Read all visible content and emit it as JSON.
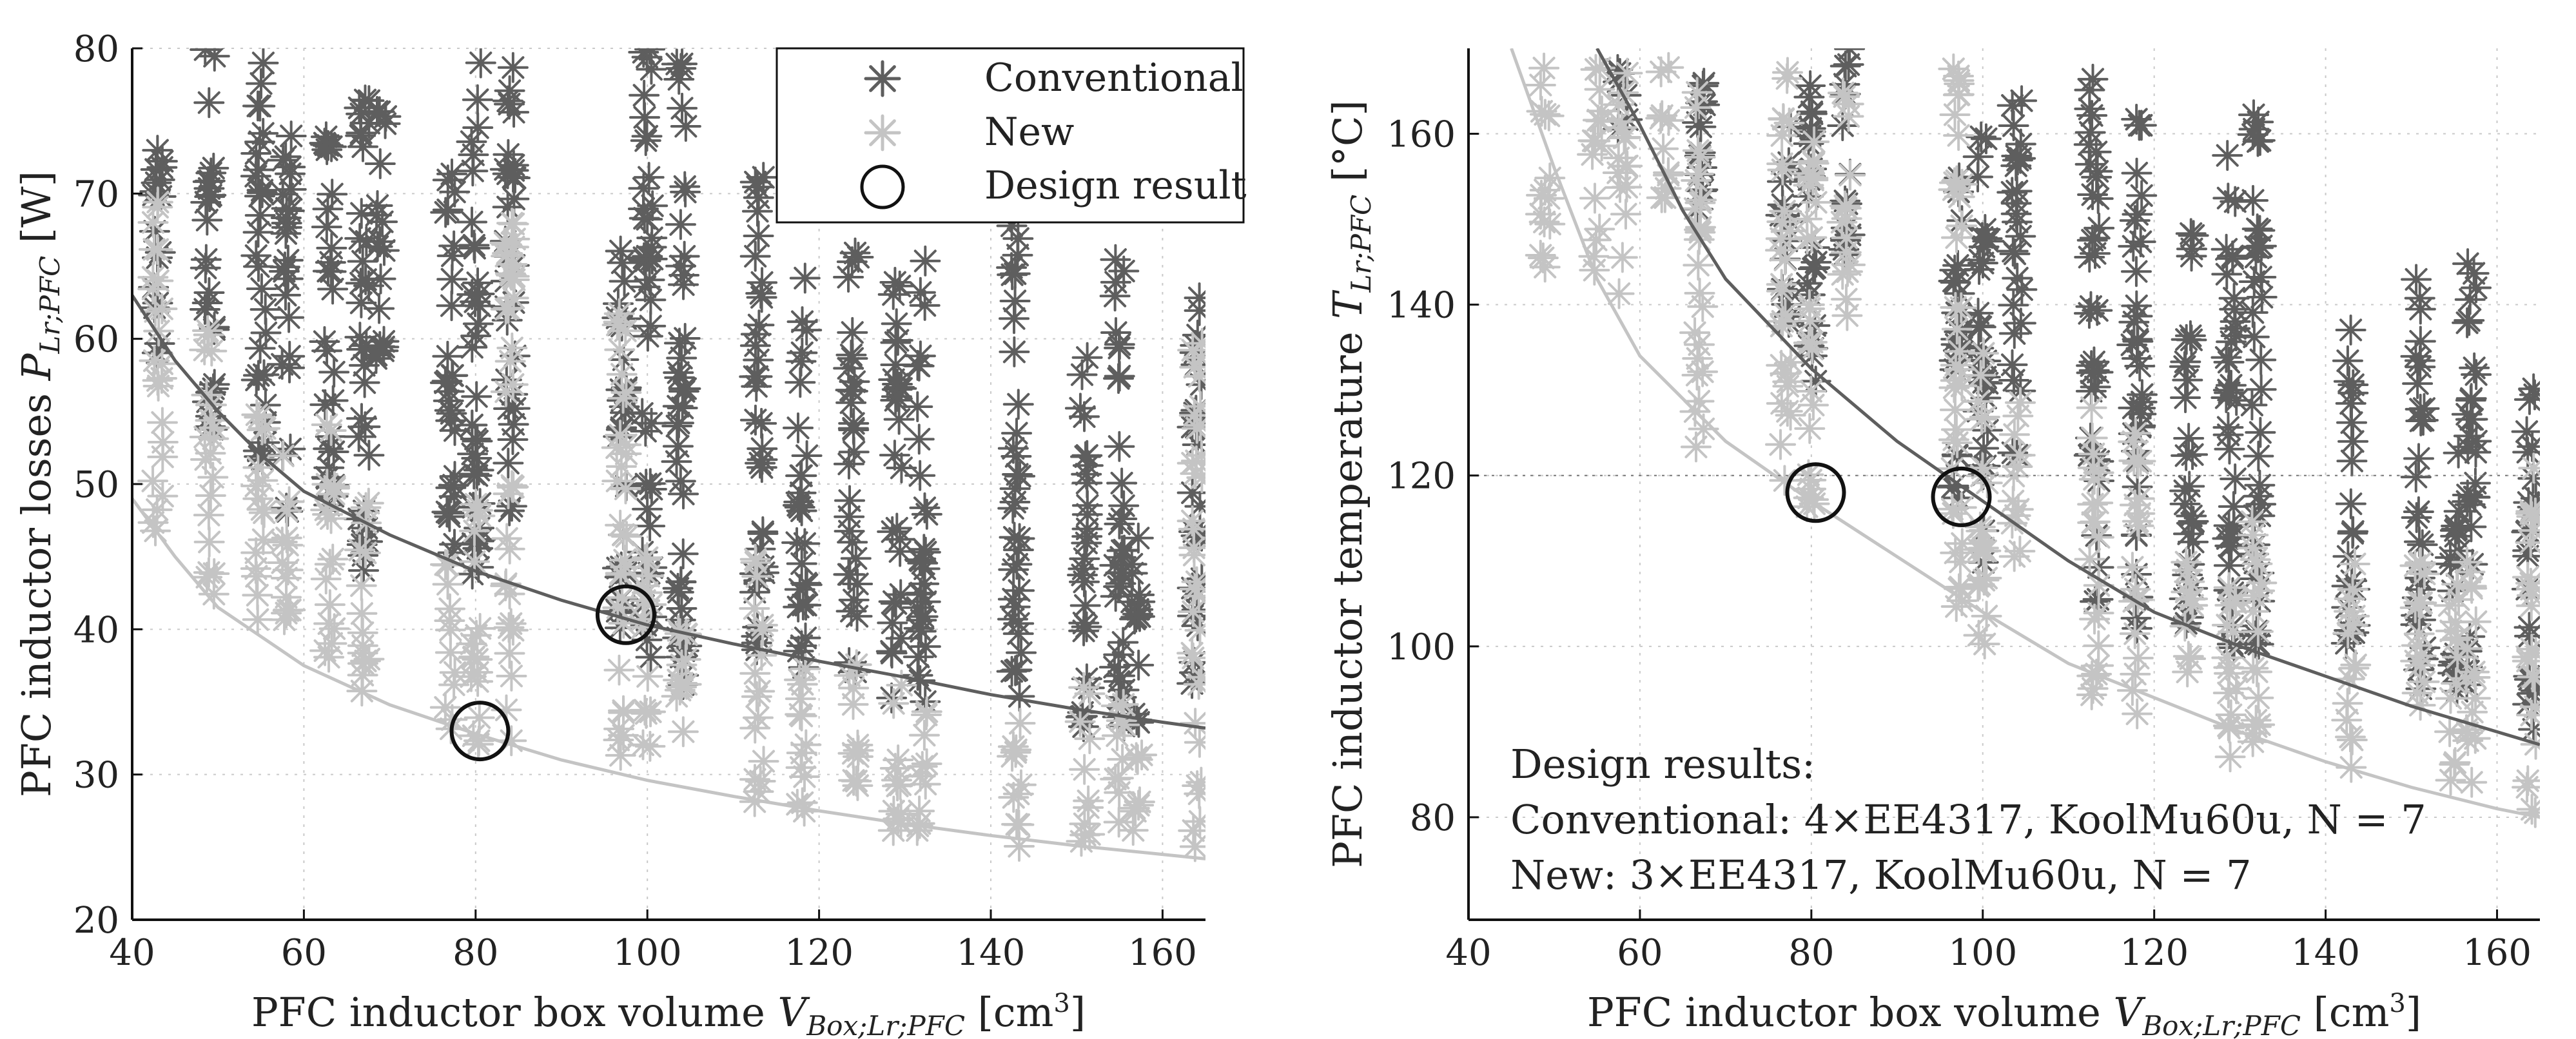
{
  "chart_data": [
    {
      "type": "scatter",
      "xlabel_text": "PFC inductor box volume ",
      "xlabel_symbol": "V",
      "xlabel_sub": "Box;Lr;PFC",
      "xlabel_unit": " [cm",
      "xlabel_unit_sup": "3",
      "xlabel_unit_end": "]",
      "ylabel_text": "PFC inductor losses ",
      "ylabel_symbol": "P",
      "ylabel_sub": "Lr;PFC",
      "ylabel_unit": " [W]",
      "xlim": [
        40,
        165
      ],
      "ylim": [
        20,
        80
      ],
      "xticks": [
        40,
        60,
        80,
        100,
        120,
        140,
        160
      ],
      "yticks": [
        20,
        30,
        40,
        50,
        60,
        70,
        80
      ],
      "grid": true,
      "legend_position": "top-right",
      "legend": [
        {
          "label": "Conventional",
          "marker": "asterisk",
          "color": "#5e5e5e"
        },
        {
          "label": "New",
          "marker": "asterisk",
          "color": "#c4c4c4"
        },
        {
          "label": "Design result",
          "marker": "circle",
          "color": "#111111"
        }
      ],
      "series": [
        {
          "name": "Conventional",
          "color": "#5e5e5e",
          "columns": [
            {
              "x": 43,
              "ymin": 58,
              "ymax": 75
            },
            {
              "x": 49,
              "ymin": 53,
              "ymax": 80
            },
            {
              "x": 55,
              "ymin": 50,
              "ymax": 79
            },
            {
              "x": 58,
              "ymin": 48,
              "ymax": 74
            },
            {
              "x": 63,
              "ymin": 47,
              "ymax": 75
            },
            {
              "x": 67,
              "ymin": 44,
              "ymax": 77
            },
            {
              "x": 69,
              "ymin": 58,
              "ymax": 77
            },
            {
              "x": 77,
              "ymin": 43,
              "ymax": 72
            },
            {
              "x": 80,
              "ymin": 43,
              "ymax": 79
            },
            {
              "x": 84,
              "ymin": 48,
              "ymax": 79
            },
            {
              "x": 97,
              "ymin": 40,
              "ymax": 68
            },
            {
              "x": 100,
              "ymin": 38,
              "ymax": 80
            },
            {
              "x": 104,
              "ymin": 36,
              "ymax": 79
            },
            {
              "x": 113,
              "ymin": 37,
              "ymax": 72
            },
            {
              "x": 118,
              "ymin": 37,
              "ymax": 65
            },
            {
              "x": 124,
              "ymin": 36,
              "ymax": 66
            },
            {
              "x": 129,
              "ymin": 35,
              "ymax": 64
            },
            {
              "x": 132,
              "ymin": 35,
              "ymax": 66
            },
            {
              "x": 143,
              "ymin": 34,
              "ymax": 68
            },
            {
              "x": 151,
              "ymin": 33,
              "ymax": 61
            },
            {
              "x": 155,
              "ymin": 33,
              "ymax": 66
            },
            {
              "x": 157,
              "ymin": 33,
              "ymax": 48
            },
            {
              "x": 164,
              "ymin": 36,
              "ymax": 63
            }
          ]
        },
        {
          "name": "New",
          "color": "#c4c4c4",
          "columns": [
            {
              "x": 43,
              "ymin": 46,
              "ymax": 70
            },
            {
              "x": 49,
              "ymin": 42,
              "ymax": 62
            },
            {
              "x": 55,
              "ymin": 40,
              "ymax": 56
            },
            {
              "x": 58,
              "ymin": 38,
              "ymax": 52
            },
            {
              "x": 63,
              "ymin": 37,
              "ymax": 55
            },
            {
              "x": 67,
              "ymin": 35,
              "ymax": 50
            },
            {
              "x": 77,
              "ymin": 33,
              "ymax": 45
            },
            {
              "x": 80,
              "ymin": 32,
              "ymax": 50
            },
            {
              "x": 84,
              "ymin": 32,
              "ymax": 68
            },
            {
              "x": 97,
              "ymin": 30,
              "ymax": 62
            },
            {
              "x": 100,
              "ymin": 30,
              "ymax": 45
            },
            {
              "x": 104,
              "ymin": 29,
              "ymax": 42
            },
            {
              "x": 113,
              "ymin": 28,
              "ymax": 45
            },
            {
              "x": 118,
              "ymin": 27,
              "ymax": 40
            },
            {
              "x": 124,
              "ymin": 27,
              "ymax": 38
            },
            {
              "x": 129,
              "ymin": 26,
              "ymax": 38
            },
            {
              "x": 132,
              "ymin": 26,
              "ymax": 37
            },
            {
              "x": 143,
              "ymin": 25,
              "ymax": 36
            },
            {
              "x": 151,
              "ymin": 25,
              "ymax": 36
            },
            {
              "x": 155,
              "ymin": 25,
              "ymax": 35
            },
            {
              "x": 157,
              "ymin": 25,
              "ymax": 33
            },
            {
              "x": 164,
              "ymin": 25,
              "ymax": 60
            }
          ]
        }
      ],
      "fronts": [
        {
          "color": "#5e5e5e",
          "points": [
            [
              40,
              63
            ],
            [
              45,
              58.5
            ],
            [
              50,
              55
            ],
            [
              55,
              52
            ],
            [
              60,
              49.5
            ],
            [
              70,
              46.5
            ],
            [
              80,
              44
            ],
            [
              90,
              42
            ],
            [
              100,
              40.3
            ],
            [
              110,
              39
            ],
            [
              120,
              37.8
            ],
            [
              130,
              36.7
            ],
            [
              140,
              35.5
            ],
            [
              150,
              34.5
            ],
            [
              160,
              33.6
            ],
            [
              165,
              33.2
            ]
          ]
        },
        {
          "color": "#c4c4c4",
          "points": [
            [
              40,
              49
            ],
            [
              45,
              45
            ],
            [
              50,
              41.5
            ],
            [
              55,
              39.5
            ],
            [
              60,
              37.5
            ],
            [
              70,
              34.8
            ],
            [
              80,
              32.8
            ],
            [
              90,
              31
            ],
            [
              100,
              29.6
            ],
            [
              110,
              28.5
            ],
            [
              120,
              27.5
            ],
            [
              130,
              26.6
            ],
            [
              140,
              25.8
            ],
            [
              150,
              25.1
            ],
            [
              160,
              24.5
            ],
            [
              165,
              24.2
            ]
          ]
        }
      ],
      "design_results": [
        {
          "series": "Conventional",
          "x": 97.5,
          "y": 41
        },
        {
          "series": "New",
          "x": 80.5,
          "y": 33
        }
      ]
    },
    {
      "type": "scatter",
      "xlabel_text": "PFC inductor box volume ",
      "xlabel_symbol": "V",
      "xlabel_sub": "Box;Lr;PFC",
      "xlabel_unit": " [cm",
      "xlabel_unit_sup": "3",
      "xlabel_unit_end": "]",
      "ylabel_text": "PFC inductor temperature ",
      "ylabel_symbol": "T",
      "ylabel_sub": "Lr;PFC",
      "ylabel_unit": " [°C]",
      "xlim": [
        40,
        165
      ],
      "ylim": [
        68,
        170
      ],
      "xticks": [
        40,
        60,
        80,
        100,
        120,
        140,
        160
      ],
      "yticks": [
        80,
        100,
        120,
        140,
        160
      ],
      "grid": true,
      "reference_line_y": 120,
      "series": [
        {
          "name": "Conventional",
          "color": "#5e5e5e",
          "columns": [
            {
              "x": 58,
              "ymin": 160,
              "ymax": 170
            },
            {
              "x": 67,
              "ymin": 145,
              "ymax": 168
            },
            {
              "x": 77,
              "ymin": 137,
              "ymax": 163
            },
            {
              "x": 80,
              "ymin": 126,
              "ymax": 168
            },
            {
              "x": 84,
              "ymin": 145,
              "ymax": 170
            },
            {
              "x": 97,
              "ymin": 116,
              "ymax": 155
            },
            {
              "x": 100,
              "ymin": 108,
              "ymax": 160
            },
            {
              "x": 104,
              "ymin": 120,
              "ymax": 165
            },
            {
              "x": 113,
              "ymin": 104,
              "ymax": 167
            },
            {
              "x": 118,
              "ymin": 102,
              "ymax": 162
            },
            {
              "x": 124,
              "ymin": 102,
              "ymax": 149
            },
            {
              "x": 129,
              "ymin": 97,
              "ymax": 161
            },
            {
              "x": 132,
              "ymin": 100,
              "ymax": 163
            },
            {
              "x": 143,
              "ymin": 100,
              "ymax": 138
            },
            {
              "x": 151,
              "ymin": 95,
              "ymax": 144
            },
            {
              "x": 155,
              "ymin": 94,
              "ymax": 123
            },
            {
              "x": 157,
              "ymin": 94,
              "ymax": 146
            },
            {
              "x": 164,
              "ymin": 88,
              "ymax": 131
            }
          ]
        },
        {
          "name": "New",
          "color": "#c4c4c4",
          "columns": [
            {
              "x": 49,
              "ymin": 143,
              "ymax": 168
            },
            {
              "x": 55,
              "ymin": 142,
              "ymax": 168
            },
            {
              "x": 58,
              "ymin": 140,
              "ymax": 168
            },
            {
              "x": 63,
              "ymin": 150,
              "ymax": 168
            },
            {
              "x": 67,
              "ymin": 123,
              "ymax": 165
            },
            {
              "x": 77,
              "ymin": 118,
              "ymax": 168
            },
            {
              "x": 80,
              "ymin": 113,
              "ymax": 160
            },
            {
              "x": 84,
              "ymin": 138,
              "ymax": 165
            },
            {
              "x": 97,
              "ymin": 102,
              "ymax": 168
            },
            {
              "x": 100,
              "ymin": 100,
              "ymax": 135
            },
            {
              "x": 104,
              "ymin": 110,
              "ymax": 130
            },
            {
              "x": 113,
              "ymin": 93,
              "ymax": 128
            },
            {
              "x": 118,
              "ymin": 92,
              "ymax": 125
            },
            {
              "x": 124,
              "ymin": 97,
              "ymax": 115
            },
            {
              "x": 129,
              "ymin": 86,
              "ymax": 112
            },
            {
              "x": 132,
              "ymin": 86,
              "ymax": 116
            },
            {
              "x": 143,
              "ymin": 85,
              "ymax": 110
            },
            {
              "x": 151,
              "ymin": 85,
              "ymax": 112
            },
            {
              "x": 155,
              "ymin": 84,
              "ymax": 108
            },
            {
              "x": 157,
              "ymin": 83,
              "ymax": 110
            },
            {
              "x": 164,
              "ymin": 80,
              "ymax": 123
            }
          ]
        }
      ],
      "fronts": [
        {
          "color": "#5e5e5e",
          "points": [
            [
              55,
              170
            ],
            [
              60,
              161
            ],
            [
              65,
              151
            ],
            [
              70,
              143
            ],
            [
              80,
              132.5
            ],
            [
              90,
              124
            ],
            [
              100,
              117
            ],
            [
              110,
              110
            ],
            [
              120,
              104
            ],
            [
              130,
              100
            ],
            [
              140,
              96.5
            ],
            [
              150,
              93
            ],
            [
              160,
              90
            ],
            [
              165,
              88.5
            ]
          ]
        },
        {
          "color": "#c4c4c4",
          "points": [
            [
              45,
              170
            ],
            [
              50,
              156
            ],
            [
              55,
              143
            ],
            [
              60,
              134
            ],
            [
              70,
              124
            ],
            [
              80,
              117
            ],
            [
              90,
              110.5
            ],
            [
              100,
              104
            ],
            [
              110,
              98
            ],
            [
              120,
              94
            ],
            [
              130,
              90
            ],
            [
              140,
              86.5
            ],
            [
              150,
              83.5
            ],
            [
              160,
              81
            ],
            [
              165,
              80
            ]
          ]
        }
      ],
      "design_results": [
        {
          "series": "New",
          "x": 80.5,
          "y": 118
        },
        {
          "series": "Conventional",
          "x": 97.5,
          "y": 117.5
        }
      ],
      "annotation_lines": [
        "Design results:",
        "Conventional: 4×EE4317, KoolMu60u, N = 7",
        "New: 3×EE4317, KoolMu60u, N = 7"
      ]
    }
  ]
}
